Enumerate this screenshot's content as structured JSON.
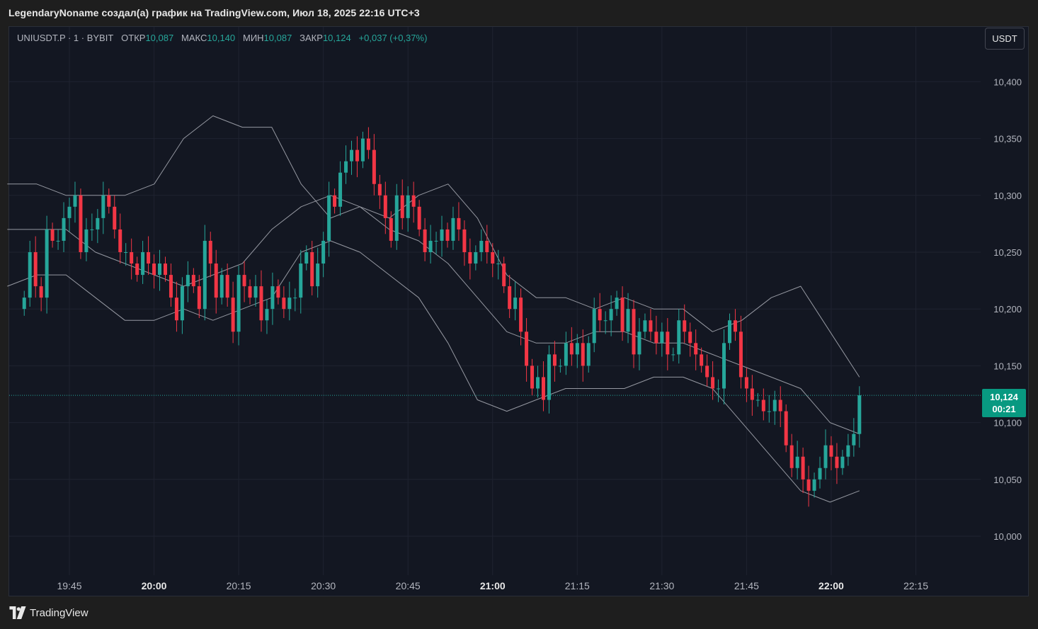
{
  "header": {
    "title": "LegendaryNoname создал(а) график на TradingView.com, Июл 18, 2025 22:16 UTC+3"
  },
  "legend": {
    "symbol": "UNIUSDT.P · 1 · BYBIT",
    "open_label": "ОТКР",
    "open": "10,087",
    "high_label": "МАКС",
    "high": "10,140",
    "low_label": "МИН",
    "low": "10,087",
    "close_label": "ЗАКР",
    "close": "10,124",
    "change": "+0,037 (+0,37%)"
  },
  "currency_button": "USDT",
  "price_tag": {
    "price": "10,124",
    "countdown": "00:21"
  },
  "footer": {
    "brand": "TradingView"
  },
  "colors": {
    "up": "#26a69a",
    "down": "#f23645",
    "band": "#9598a1",
    "background": "#131722",
    "grid": "#1f2330"
  },
  "chart_data": {
    "type": "candlestick",
    "symbol": "UNIUSDT.P",
    "interval_minutes": 1,
    "exchange": "BYBIT",
    "y_ticks": [
      "10,400",
      "10,350",
      "10,300",
      "10,250",
      "10,200",
      "10,150",
      "10,100",
      "10,050",
      "10,000"
    ],
    "y_tick_values": [
      10.4,
      10.35,
      10.3,
      10.25,
      10.2,
      10.15,
      10.1,
      10.05,
      10.0
    ],
    "x_ticks": [
      {
        "label": "19:45",
        "bold": false
      },
      {
        "label": "20:00",
        "bold": true
      },
      {
        "label": "20:15",
        "bold": false
      },
      {
        "label": "20:30",
        "bold": false
      },
      {
        "label": "20:45",
        "bold": false
      },
      {
        "label": "21:00",
        "bold": true
      },
      {
        "label": "21:15",
        "bold": false
      },
      {
        "label": "21:30",
        "bold": false
      },
      {
        "label": "21:45",
        "bold": false
      },
      {
        "label": "22:00",
        "bold": true
      },
      {
        "label": "22:15",
        "bold": false
      }
    ],
    "x_tick_minutes": [
      1185,
      1200,
      1215,
      1230,
      1245,
      1260,
      1275,
      1290,
      1305,
      1320,
      1335
    ],
    "current_price": 10.124,
    "close_series_start": "19:37",
    "close_series": [
      10.21,
      10.25,
      10.22,
      10.21,
      10.27,
      10.26,
      10.26,
      10.28,
      10.29,
      10.3,
      10.25,
      10.27,
      10.27,
      10.28,
      10.3,
      10.29,
      10.27,
      10.25,
      10.25,
      10.24,
      10.23,
      10.25,
      10.24,
      10.23,
      10.24,
      10.23,
      10.21,
      10.19,
      10.22,
      10.23,
      10.22,
      10.2,
      10.26,
      10.24,
      10.21,
      10.23,
      10.21,
      10.18,
      10.23,
      10.22,
      10.21,
      10.22,
      10.19,
      10.2,
      10.22,
      10.21,
      10.2,
      10.21,
      10.21,
      10.24,
      10.25,
      10.22,
      10.24,
      10.26,
      10.3,
      10.29,
      10.32,
      10.33,
      10.34,
      10.33,
      10.35,
      10.34,
      10.31,
      10.3,
      10.28,
      10.26,
      10.3,
      10.28,
      10.3,
      10.29,
      10.27,
      10.25,
      10.26,
      10.26,
      10.27,
      10.26,
      10.28,
      10.27,
      10.25,
      10.24,
      10.25,
      10.26,
      10.25,
      10.24,
      10.24,
      10.22,
      10.2,
      10.21,
      10.18,
      10.15,
      10.13,
      10.14,
      10.12,
      10.16,
      10.15,
      10.15,
      10.17,
      10.16,
      10.17,
      10.15,
      10.17,
      10.2,
      10.19,
      10.19,
      10.2,
      10.21,
      10.18,
      10.2,
      10.16,
      10.18,
      10.19,
      10.18,
      10.17,
      10.18,
      10.16,
      10.16,
      10.19,
      10.18,
      10.17,
      10.16,
      10.15,
      10.14,
      10.13,
      10.13,
      10.17,
      10.19,
      10.18,
      10.14,
      10.13,
      10.12,
      10.12,
      10.11,
      10.11,
      10.12,
      10.11,
      10.08,
      10.06,
      10.07,
      10.05,
      10.04,
      10.05,
      10.06,
      10.08,
      10.07,
      10.06,
      10.07,
      10.08,
      10.09,
      10.124
    ],
    "bollinger_upper_approx": [
      10.31,
      10.31,
      10.3,
      10.3,
      10.3,
      10.31,
      10.35,
      10.37,
      10.36,
      10.36,
      10.31,
      10.28,
      10.29,
      10.28,
      10.3,
      10.31,
      10.28,
      10.23,
      10.21,
      10.21,
      10.2,
      10.21,
      10.2,
      10.2,
      10.18,
      10.19,
      10.21,
      10.22,
      10.18,
      10.14
    ],
    "bollinger_middle_approx": [
      10.27,
      10.27,
      10.27,
      10.25,
      10.24,
      10.23,
      10.22,
      10.23,
      10.24,
      10.27,
      10.29,
      10.3,
      10.29,
      10.27,
      10.26,
      10.24,
      10.21,
      10.18,
      10.17,
      10.17,
      10.18,
      10.18,
      10.17,
      10.17,
      10.16,
      10.15,
      10.14,
      10.13,
      10.1,
      10.09
    ],
    "bollinger_lower_approx": [
      10.22,
      10.23,
      10.23,
      10.21,
      10.19,
      10.19,
      10.2,
      10.19,
      10.2,
      10.21,
      10.25,
      10.26,
      10.25,
      10.23,
      10.21,
      10.17,
      10.12,
      10.11,
      10.12,
      10.13,
      10.13,
      10.13,
      10.14,
      10.14,
      10.13,
      10.1,
      10.07,
      10.04,
      10.03,
      10.04
    ]
  }
}
